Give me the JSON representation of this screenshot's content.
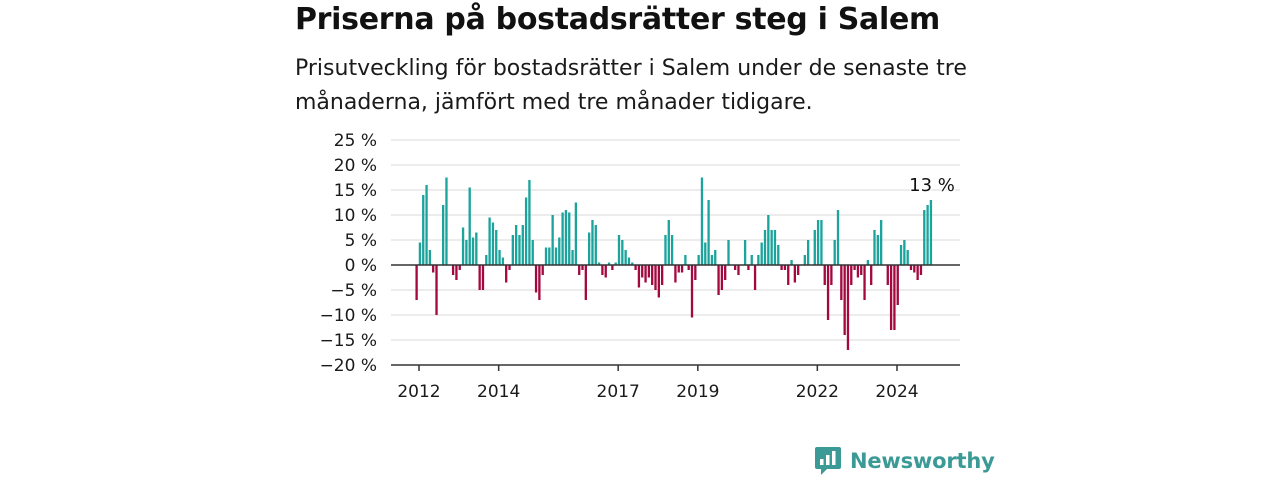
{
  "header": {
    "title": "Priserna på bostadsrätter steg i Salem",
    "subtitle": "Prisutveckling för bostadsrätter i Salem under de senaste tre månaderna, jämfört med tre månader tidigare."
  },
  "colors": {
    "positive": "#1ba39c",
    "negative": "#a3083f",
    "grid": "#d9d9d9",
    "axis": "#333333",
    "brand": "#3b9a96"
  },
  "chart_data": {
    "type": "bar",
    "x_unit": "year",
    "ylim": [
      -20,
      25
    ],
    "y_ticks": [
      25,
      20,
      15,
      10,
      5,
      0,
      -5,
      -10,
      -15,
      -20
    ],
    "y_tick_labels": [
      "25 %",
      "20 %",
      "15 %",
      "10 %",
      "5 %",
      "0 %",
      "−5 %",
      "−10 %",
      "−15 %",
      "−20 %"
    ],
    "x_ticks": [
      2012,
      2014,
      2017,
      2019,
      2022,
      2024
    ],
    "x_tick_labels": [
      "2012",
      "2014",
      "2017",
      "2019",
      "2022",
      "2024"
    ],
    "x_start": 2011.94,
    "x_step": 0.0833,
    "values": [
      -7,
      4.5,
      14,
      16,
      3,
      -1.5,
      -10,
      0,
      12,
      17.5,
      0,
      -2,
      -3,
      -1,
      7.5,
      5,
      15.5,
      5.5,
      6.5,
      -5,
      -5,
      2,
      9.5,
      8.5,
      7,
      3,
      1.5,
      -3.5,
      -1,
      6,
      8,
      6,
      8,
      13.5,
      17,
      5,
      -5.5,
      -7,
      -2,
      3.5,
      3.5,
      10,
      3.5,
      5.5,
      10.5,
      11,
      10.5,
      3,
      12.5,
      -2,
      -1,
      -7,
      6.5,
      9,
      8,
      0.5,
      -2,
      -2.5,
      0.5,
      -1,
      0.5,
      6,
      5,
      3,
      1.5,
      0.5,
      -1,
      -4.5,
      -2.5,
      -3.5,
      -2.5,
      -4,
      -5,
      -6.5,
      -4,
      6,
      9,
      6,
      -3.5,
      -1.5,
      -1.5,
      2,
      -1,
      -10.5,
      -3,
      2,
      17.5,
      4.5,
      13,
      2,
      3,
      -6,
      -5,
      -3,
      5,
      0,
      -1,
      -2,
      0,
      5,
      -1,
      2,
      -5,
      2,
      4.5,
      7,
      10,
      7,
      7,
      4,
      -1,
      -1,
      -4,
      1,
      -3.5,
      -2,
      0,
      2,
      5,
      0,
      7,
      9,
      9,
      -4,
      -11,
      -4,
      5,
      11,
      -7,
      -14,
      -17,
      -4,
      -1,
      -2.5,
      -2,
      -7,
      1,
      -4,
      7,
      6,
      9,
      0,
      -4,
      -13,
      -13,
      -8,
      4,
      5,
      3,
      -1,
      -1.5,
      -3,
      -2,
      11,
      12,
      13
    ],
    "annotation": {
      "text": "13 %"
    }
  },
  "brand": {
    "name": "Newsworthy",
    "icon": "newsworthy-logo-icon"
  }
}
